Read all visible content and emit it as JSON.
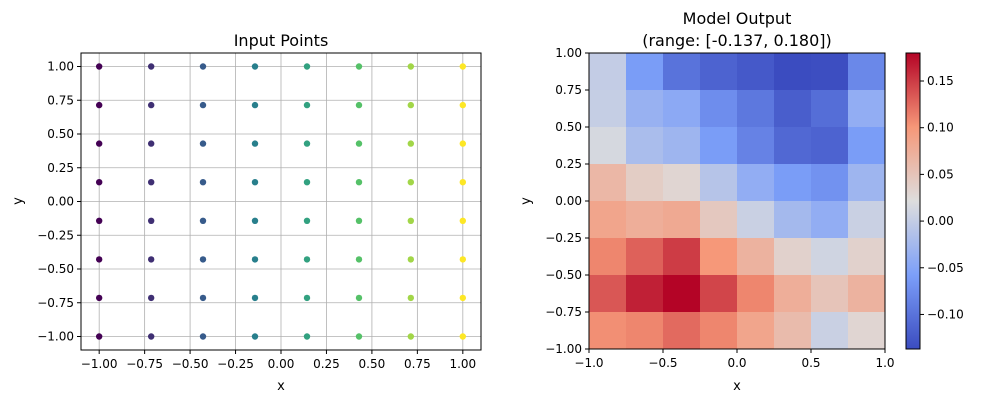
{
  "chart_data": [
    {
      "type": "scatter",
      "title": "Input Points",
      "xlabel": "x",
      "ylabel": "y",
      "xlim": [
        -1.1,
        1.1
      ],
      "ylim": [
        -1.1,
        1.1
      ],
      "grid": true,
      "colormap": "viridis",
      "color_by": "x",
      "xticks": [
        -1.0,
        -0.75,
        -0.5,
        -0.25,
        0.0,
        0.25,
        0.5,
        0.75,
        1.0
      ],
      "yticks": [
        -1.0,
        -0.75,
        -0.5,
        -0.25,
        0.0,
        0.25,
        0.5,
        0.75,
        1.0
      ],
      "xtick_labels": [
        "−1.00",
        "−0.75",
        "−0.50",
        "−0.25",
        "0.00",
        "0.25",
        "0.50",
        "0.75",
        "1.00"
      ],
      "ytick_labels": [
        "−1.00",
        "−0.75",
        "−0.50",
        "−0.25",
        "0.00",
        "0.25",
        "0.50",
        "0.75",
        "1.00"
      ],
      "x_values": [
        -1.0,
        -0.714,
        -0.429,
        -0.143,
        0.143,
        0.429,
        0.714,
        1.0
      ],
      "y_values": [
        -1.0,
        -0.714,
        -0.429,
        -0.143,
        0.143,
        0.429,
        0.714,
        1.0
      ]
    },
    {
      "type": "heatmap",
      "title": "Model Output",
      "subtitle": "(range: [-0.137, 0.180])",
      "xlabel": "x",
      "ylabel": "y",
      "xlim": [
        -1.0,
        1.0
      ],
      "ylim": [
        -1.0,
        1.0
      ],
      "colormap": "coolwarm",
      "vmin": -0.137,
      "vmax": 0.18,
      "xticks": [
        -1.0,
        -0.5,
        0.0,
        0.5,
        1.0
      ],
      "yticks": [
        -1.0,
        -0.75,
        -0.5,
        -0.25,
        0.0,
        0.25,
        0.5,
        0.75,
        1.0
      ],
      "xtick_labels": [
        "−1.0",
        "−0.5",
        "0.0",
        "0.5",
        "1.0"
      ],
      "ytick_labels": [
        "−1.00",
        "−0.75",
        "−0.50",
        "−0.25",
        "0.00",
        "0.25",
        "0.50",
        "0.75",
        "1.00"
      ],
      "colorbar_ticks": [
        -0.1,
        -0.05,
        0.0,
        0.05,
        0.1,
        0.15
      ],
      "colorbar_tick_labels": [
        "−0.10",
        "−0.05",
        "0.00",
        "0.05",
        "0.10",
        "0.15"
      ],
      "values_top_to_bottom": [
        [
          0.0,
          -0.06,
          -0.1,
          -0.115,
          -0.125,
          -0.137,
          -0.135,
          -0.08
        ],
        [
          0.002,
          -0.035,
          -0.045,
          -0.075,
          -0.095,
          -0.12,
          -0.105,
          -0.04
        ],
        [
          0.015,
          -0.02,
          -0.03,
          -0.06,
          -0.085,
          -0.11,
          -0.115,
          -0.06
        ],
        [
          0.065,
          0.04,
          0.03,
          -0.01,
          -0.04,
          -0.06,
          -0.07,
          -0.03
        ],
        [
          0.085,
          0.075,
          0.08,
          0.045,
          0.005,
          -0.025,
          -0.04,
          0.005
        ],
        [
          0.11,
          0.13,
          0.15,
          0.1,
          0.07,
          0.035,
          0.01,
          0.035
        ],
        [
          0.135,
          0.165,
          0.18,
          0.145,
          0.11,
          0.075,
          0.05,
          0.07
        ],
        [
          0.105,
          0.11,
          0.125,
          0.11,
          0.085,
          0.06,
          0.005,
          0.03
        ]
      ]
    }
  ]
}
